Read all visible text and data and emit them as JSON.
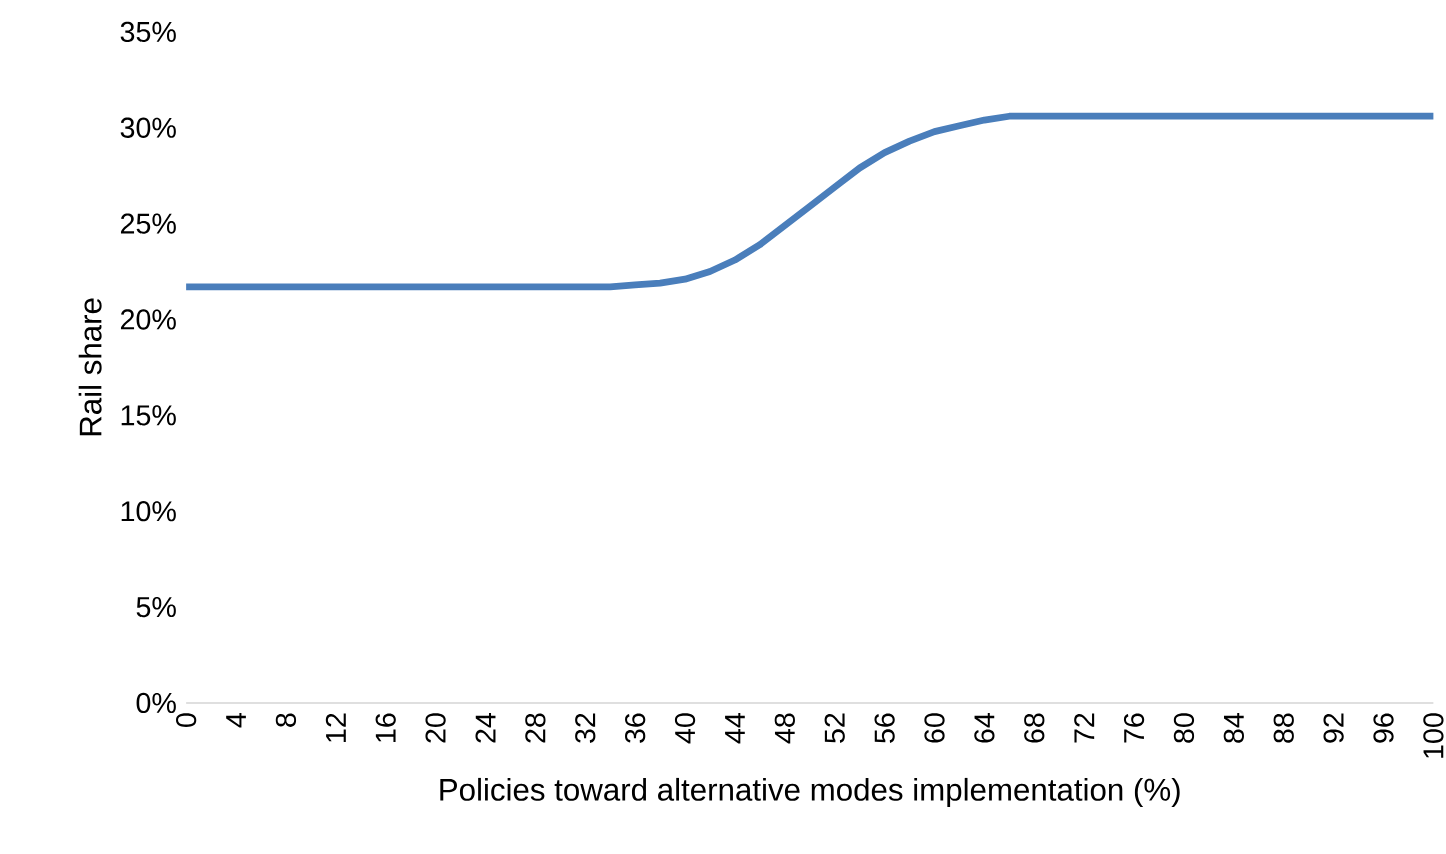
{
  "chart_data": {
    "type": "line",
    "xlabel": "Policies toward alternative modes implementation (%)",
    "ylabel": "Rail share",
    "x": [
      0,
      4,
      8,
      12,
      16,
      20,
      24,
      28,
      32,
      34,
      36,
      38,
      40,
      42,
      44,
      46,
      48,
      50,
      52,
      54,
      56,
      58,
      60,
      62,
      64,
      66,
      70,
      80,
      90,
      100
    ],
    "series": [
      {
        "color": "#4a7ebb",
        "values": [
          21.7,
          21.7,
          21.7,
          21.7,
          21.7,
          21.7,
          21.7,
          21.7,
          21.7,
          21.7,
          21.8,
          21.9,
          22.1,
          22.5,
          23.1,
          23.9,
          24.9,
          25.9,
          26.9,
          27.9,
          28.7,
          29.3,
          29.8,
          30.1,
          30.4,
          30.6,
          30.6,
          30.6,
          30.6,
          30.6
        ]
      }
    ],
    "xlim": [
      0,
      100
    ],
    "xticks": [
      0,
      4,
      8,
      12,
      16,
      20,
      24,
      28,
      32,
      36,
      40,
      44,
      48,
      52,
      56,
      60,
      64,
      68,
      72,
      76,
      80,
      84,
      88,
      92,
      96,
      100
    ],
    "ylim": [
      0,
      35
    ],
    "yticks": [
      {
        "value": 0,
        "label": "0%"
      },
      {
        "value": 5,
        "label": "5%"
      },
      {
        "value": 10,
        "label": "10%"
      },
      {
        "value": 15,
        "label": "15%"
      },
      {
        "value": 20,
        "label": "20%"
      },
      {
        "value": 25,
        "label": "25%"
      },
      {
        "value": 30,
        "label": "30%"
      },
      {
        "value": 35,
        "label": "35%"
      }
    ],
    "grid": false,
    "legend": false,
    "marker": "none",
    "line_style": "solid"
  }
}
